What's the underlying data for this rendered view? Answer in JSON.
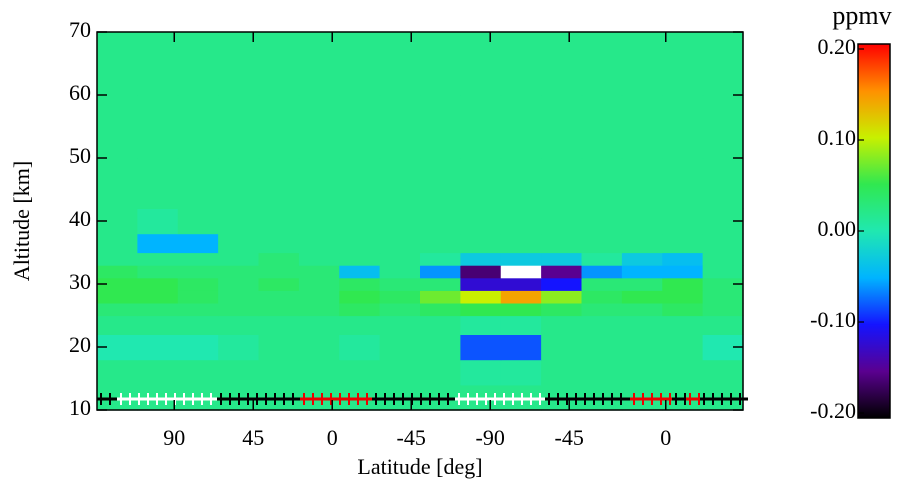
{
  "chart_data": {
    "type": "heatmap",
    "xlabel": "Latitude [deg]",
    "ylabel": "Altitude [km]",
    "colorbar_label": "ppmv",
    "x_edges": [
      46,
      69,
      92,
      115,
      138,
      161,
      184,
      207,
      230,
      253,
      276,
      299,
      322,
      345,
      368,
      391,
      414
    ],
    "y_edges": [
      10,
      14,
      18,
      22,
      25,
      27,
      29,
      31,
      33,
      35,
      38,
      42,
      50,
      60,
      70
    ],
    "z": [
      [
        0.02,
        0.02,
        0.02,
        0.02,
        0.02,
        0.02,
        0.02,
        0.02,
        0.02,
        0.02,
        0.02,
        0.02,
        0.02,
        0.02,
        0.02,
        0.02
      ],
      [
        0.02,
        0.02,
        0.02,
        0.02,
        0.02,
        0.02,
        0.02,
        0.02,
        0.02,
        0.01,
        0.01,
        0.02,
        0.02,
        0.02,
        0.02,
        0.02
      ],
      [
        0.0,
        0.0,
        0.0,
        0.01,
        0.02,
        0.02,
        0.01,
        0.02,
        0.02,
        -0.08,
        -0.08,
        0.02,
        0.02,
        0.02,
        0.02,
        0.0
      ],
      [
        0.02,
        0.02,
        0.02,
        0.02,
        0.02,
        0.02,
        0.02,
        0.02,
        0.02,
        0.01,
        0.01,
        0.02,
        0.02,
        0.02,
        0.02,
        0.02
      ],
      [
        0.03,
        0.03,
        0.03,
        0.03,
        0.03,
        0.03,
        0.04,
        0.03,
        0.04,
        0.05,
        0.05,
        0.04,
        0.03,
        0.03,
        0.04,
        0.03
      ],
      [
        0.05,
        0.05,
        0.04,
        0.03,
        0.03,
        0.03,
        0.05,
        0.04,
        0.07,
        0.1,
        0.14,
        0.08,
        0.04,
        0.05,
        0.05,
        0.03
      ],
      [
        0.05,
        0.05,
        0.04,
        0.03,
        0.04,
        0.03,
        0.04,
        0.03,
        0.03,
        -0.12,
        -0.12,
        -0.1,
        0.03,
        0.03,
        0.05,
        0.03
      ],
      [
        0.04,
        0.03,
        0.03,
        0.03,
        0.03,
        0.03,
        -0.04,
        0.02,
        -0.06,
        -0.16,
        -0.22,
        -0.15,
        -0.06,
        -0.05,
        -0.05,
        0.02
      ],
      [
        0.02,
        0.02,
        0.02,
        0.02,
        0.03,
        0.02,
        0.02,
        0.02,
        0.01,
        -0.03,
        -0.03,
        -0.03,
        0.01,
        -0.03,
        -0.04,
        0.02
      ],
      [
        0.02,
        -0.05,
        -0.05,
        0.02,
        0.02,
        0.02,
        0.02,
        0.02,
        0.02,
        0.02,
        0.02,
        0.02,
        0.02,
        0.02,
        0.02,
        0.02
      ],
      [
        0.02,
        0.01,
        0.02,
        0.02,
        0.02,
        0.02,
        0.02,
        0.02,
        0.02,
        0.02,
        0.02,
        0.02,
        0.02,
        0.02,
        0.02,
        0.02
      ],
      [
        0.02,
        0.02,
        0.02,
        0.02,
        0.02,
        0.02,
        0.02,
        0.02,
        0.02,
        0.02,
        0.02,
        0.02,
        0.02,
        0.02,
        0.02,
        0.02
      ],
      [
        0.02,
        0.02,
        0.02,
        0.02,
        0.02,
        0.02,
        0.02,
        0.02,
        0.02,
        0.02,
        0.02,
        0.02,
        0.02,
        0.02,
        0.02,
        0.02
      ],
      [
        0.02,
        0.02,
        0.02,
        0.02,
        0.02,
        0.02,
        0.02,
        0.02,
        0.02,
        0.02,
        0.02,
        0.02,
        0.02,
        0.02,
        0.02,
        0.02
      ]
    ],
    "xlim": [
      46,
      414
    ],
    "xticks": [
      {
        "value": 90,
        "label": "90"
      },
      {
        "value": 135,
        "label": "45"
      },
      {
        "value": 180,
        "label": "0"
      },
      {
        "value": 225,
        "label": "-45"
      },
      {
        "value": 270,
        "label": "-90"
      },
      {
        "value": 315,
        "label": "-45"
      },
      {
        "value": 370,
        "label": "0"
      }
    ],
    "ylim": [
      10,
      70
    ],
    "yticks": [
      10,
      20,
      30,
      40,
      50,
      60,
      70
    ],
    "zlim": [
      -0.2,
      0.2
    ],
    "zticks": [
      {
        "value": 0.2,
        "label": "0.20"
      },
      {
        "value": 0.1,
        "label": "0.10"
      },
      {
        "value": 0,
        "label": "0.00"
      },
      {
        "value": -0.1,
        "label": "-0.10"
      },
      {
        "value": -0.2,
        "label": "-0.20"
      }
    ],
    "colormap": [
      "#000000",
      "#5a0090",
      "#1414ff",
      "#00b4ff",
      "#20e8b0",
      "#30e850",
      "#c8f000",
      "#ff9000",
      "#ff0000"
    ],
    "under_color": "#ffffff"
  }
}
